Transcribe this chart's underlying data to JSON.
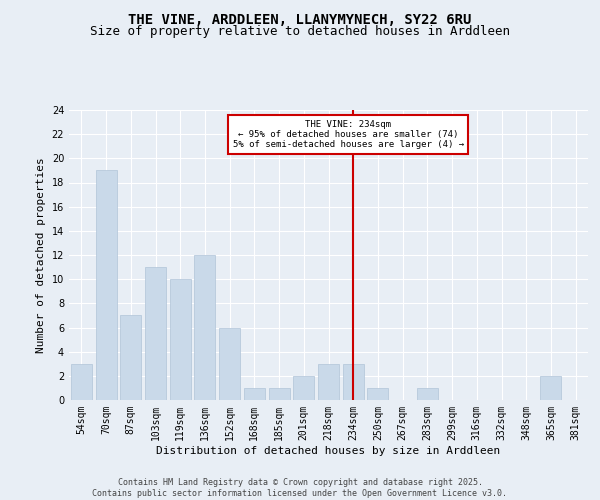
{
  "title": "THE VINE, ARDDLEEN, LLANYMYNECH, SY22 6RU",
  "subtitle": "Size of property relative to detached houses in Arddleen",
  "xlabel": "Distribution of detached houses by size in Arddleen",
  "ylabel": "Number of detached properties",
  "categories": [
    "54sqm",
    "70sqm",
    "87sqm",
    "103sqm",
    "119sqm",
    "136sqm",
    "152sqm",
    "168sqm",
    "185sqm",
    "201sqm",
    "218sqm",
    "234sqm",
    "250sqm",
    "267sqm",
    "283sqm",
    "299sqm",
    "316sqm",
    "332sqm",
    "348sqm",
    "365sqm",
    "381sqm"
  ],
  "values": [
    3,
    19,
    7,
    11,
    10,
    12,
    6,
    1,
    1,
    2,
    3,
    3,
    1,
    0,
    1,
    0,
    0,
    0,
    0,
    2,
    0
  ],
  "bar_color": "#c9d9e9",
  "bar_edgecolor": "#b0c4d8",
  "vline_index": 11,
  "vline_color": "#cc0000",
  "annotation_text": "THE VINE: 234sqm\n← 95% of detached houses are smaller (74)\n5% of semi-detached houses are larger (4) →",
  "annotation_box_color": "#cc0000",
  "ylim": [
    0,
    24
  ],
  "yticks": [
    0,
    2,
    4,
    6,
    8,
    10,
    12,
    14,
    16,
    18,
    20,
    22,
    24
  ],
  "background_color": "#e8eef5",
  "grid_color": "#ffffff",
  "footer": "Contains HM Land Registry data © Crown copyright and database right 2025.\nContains public sector information licensed under the Open Government Licence v3.0.",
  "title_fontsize": 10,
  "subtitle_fontsize": 9,
  "axis_label_fontsize": 8,
  "tick_fontsize": 7,
  "footer_fontsize": 6
}
